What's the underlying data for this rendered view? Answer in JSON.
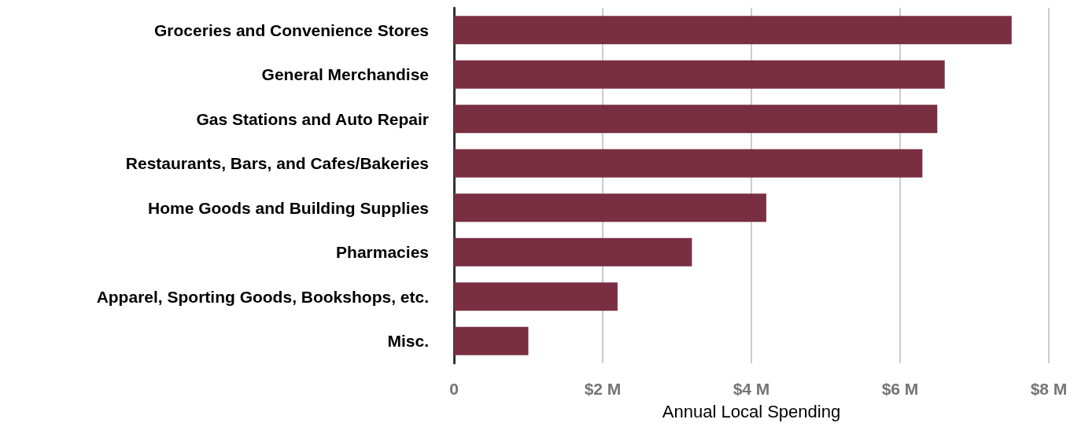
{
  "chart_data": {
    "type": "bar",
    "orientation": "horizontal",
    "xlabel": "Annual Local Spending",
    "categories": [
      "Groceries and Convenience Stores",
      "General Merchandise",
      "Gas Stations and Auto Repair",
      "Restaurants, Bars, and Cafes/Bakeries",
      "Home Goods and Building Supplies",
      "Pharmacies",
      "Apparel, Sporting Goods, Bookshops, etc.",
      "Misc."
    ],
    "values": [
      7.5,
      6.6,
      6.5,
      6.3,
      4.2,
      3.2,
      2.2,
      1.0
    ],
    "color": "#7a2e42",
    "xlim": [
      0,
      8
    ],
    "xticks": [
      0,
      {
        "value": 2,
        "label": "$2 M"
      },
      {
        "value": 4,
        "label": "$4 M"
      },
      {
        "value": 6,
        "label": "$6 M"
      },
      {
        "value": 8,
        "label": "$8 M"
      }
    ],
    "grid": "x"
  }
}
